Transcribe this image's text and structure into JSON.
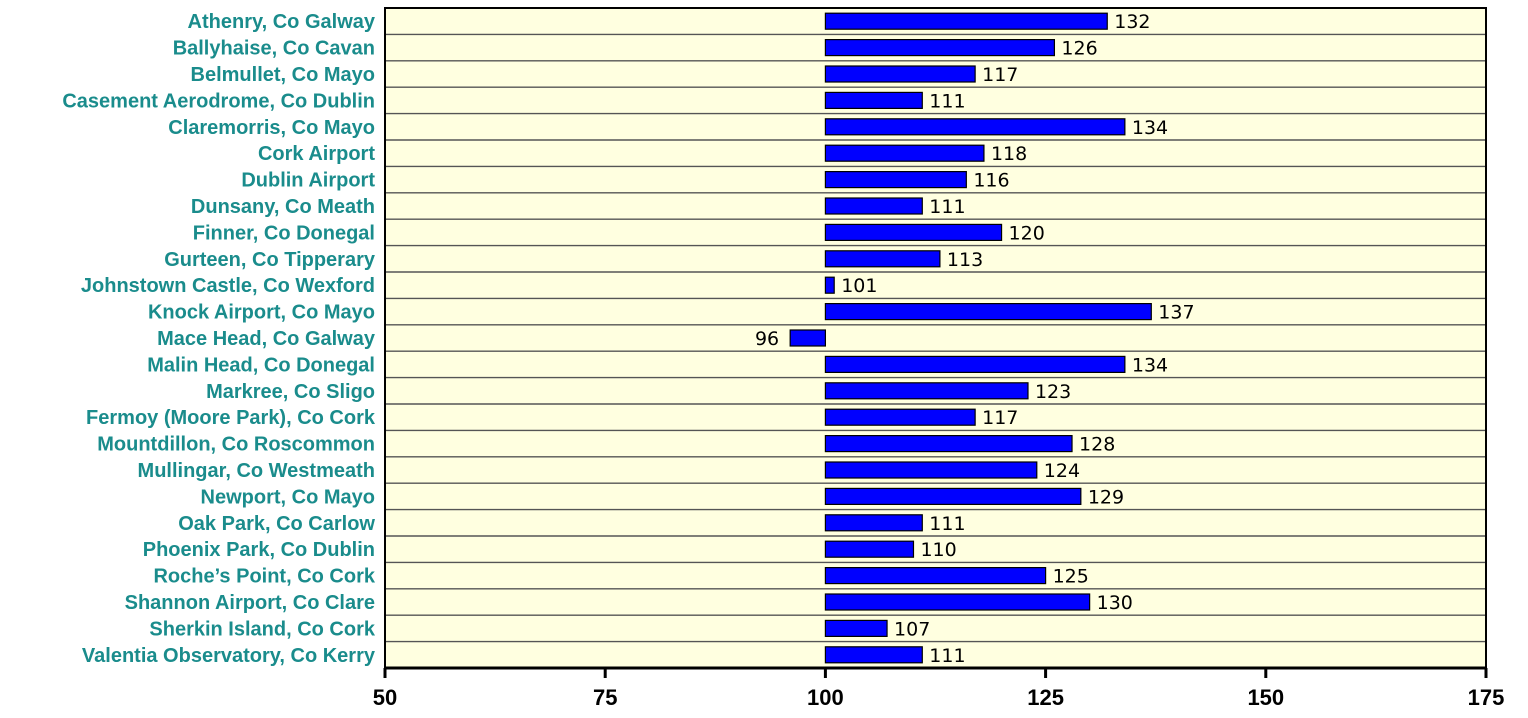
{
  "chart_data": {
    "type": "bar",
    "orientation": "horizontal",
    "baseline": 100,
    "categories": [
      "Athenry, Co Galway",
      "Ballyhaise, Co Cavan",
      "Belmullet, Co Mayo",
      "Casement Aerodrome, Co Dublin",
      "Claremorris, Co Mayo",
      "Cork Airport",
      "Dublin Airport",
      "Dunsany, Co Meath",
      "Finner, Co Donegal",
      "Gurteen, Co Tipperary",
      "Johnstown Castle, Co Wexford",
      "Knock Airport, Co Mayo",
      "Mace Head, Co Galway",
      "Malin Head, Co Donegal",
      "Markree, Co Sligo",
      "Fermoy (Moore Park), Co Cork",
      "Mountdillon, Co Roscommon",
      "Mullingar, Co Westmeath",
      "Newport, Co Mayo",
      "Oak Park, Co Carlow",
      "Phoenix Park, Co Dublin",
      "Roche’s Point, Co Cork",
      "Shannon Airport, Co Clare",
      "Sherkin Island, Co Cork",
      "Valentia Observatory, Co Kerry"
    ],
    "values": [
      132,
      126,
      117,
      111,
      134,
      118,
      116,
      111,
      120,
      113,
      101,
      137,
      96,
      134,
      123,
      117,
      128,
      124,
      129,
      111,
      110,
      125,
      130,
      107,
      111
    ],
    "data_labels": [
      "132",
      "126",
      "117",
      "111",
      "134",
      "118",
      "116",
      "111",
      "120",
      "113",
      "101",
      "137",
      "96",
      "134",
      "123",
      "117",
      "128",
      "124",
      "129",
      "111",
      "110",
      "125",
      "130",
      "107",
      "111"
    ],
    "xlim": [
      50,
      175
    ],
    "xticks": [
      50,
      75,
      100,
      125,
      150,
      175
    ],
    "xtick_labels": [
      "50",
      "75",
      "100",
      "125",
      "150",
      "175"
    ],
    "title": "",
    "xlabel": "",
    "ylabel": "",
    "grid": "horizontal lines between rows",
    "legend": "none",
    "colors": {
      "bar": "#0000ff",
      "plot_background": "#ffffe0",
      "category_label": "#1a8c8c",
      "axis": "#000000",
      "grid": "#555555"
    }
  }
}
